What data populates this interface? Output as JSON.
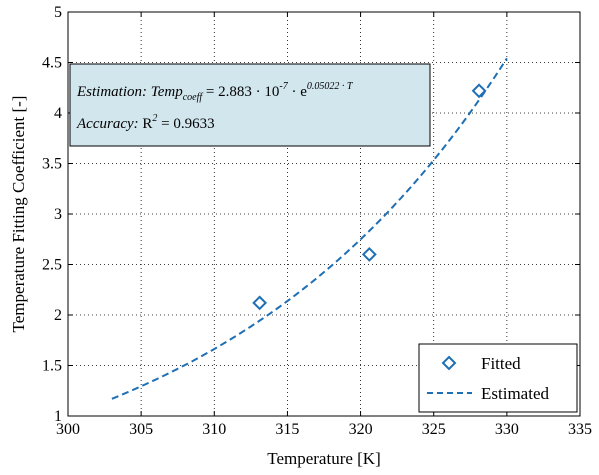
{
  "chart_data": {
    "type": "scatter",
    "xlabel": "Temperature [K]",
    "ylabel": "Temperature Fitting Coefficient [-]",
    "xlim": [
      300,
      335
    ],
    "ylim": [
      1,
      5
    ],
    "xticks": [
      300,
      305,
      310,
      315,
      320,
      325,
      330,
      335
    ],
    "yticks": [
      1,
      1.5,
      2,
      2.5,
      3,
      3.5,
      4,
      4.5,
      5
    ],
    "xtick_labels": [
      "300",
      "305",
      "310",
      "315",
      "320",
      "325",
      "330",
      "335"
    ],
    "ytick_labels": [
      "1",
      "1.5",
      "2",
      "2.5",
      "3",
      "3.5",
      "4",
      "4.5",
      "5"
    ],
    "grid": true,
    "legend_position": "bottom-right",
    "series": [
      {
        "name": "Fitted",
        "kind": "markers",
        "marker": "diamond",
        "color": "#1f6fb4",
        "x": [
          313.1,
          320.6,
          328.1
        ],
        "y": [
          2.12,
          2.6,
          4.22
        ]
      },
      {
        "name": "Estimated",
        "kind": "dashed-line",
        "color": "#1f6fb4",
        "formula": {
          "a": 2.883e-07,
          "b": 0.05022
        },
        "x_range": [
          303,
          330
        ]
      }
    ],
    "annotation": {
      "line1": {
        "prefix": "Estimation: Temp",
        "subscript": "coeff",
        "middle": " = 2.883 · 10",
        "sup1": "-7",
        "mid2": " · e",
        "sup2": "0.05022 · T"
      },
      "line2": {
        "label": "Accuracy:",
        "r": " R",
        "sup": "2",
        "value": " = 0.9633"
      },
      "box_color": "#d2e6ee"
    }
  }
}
